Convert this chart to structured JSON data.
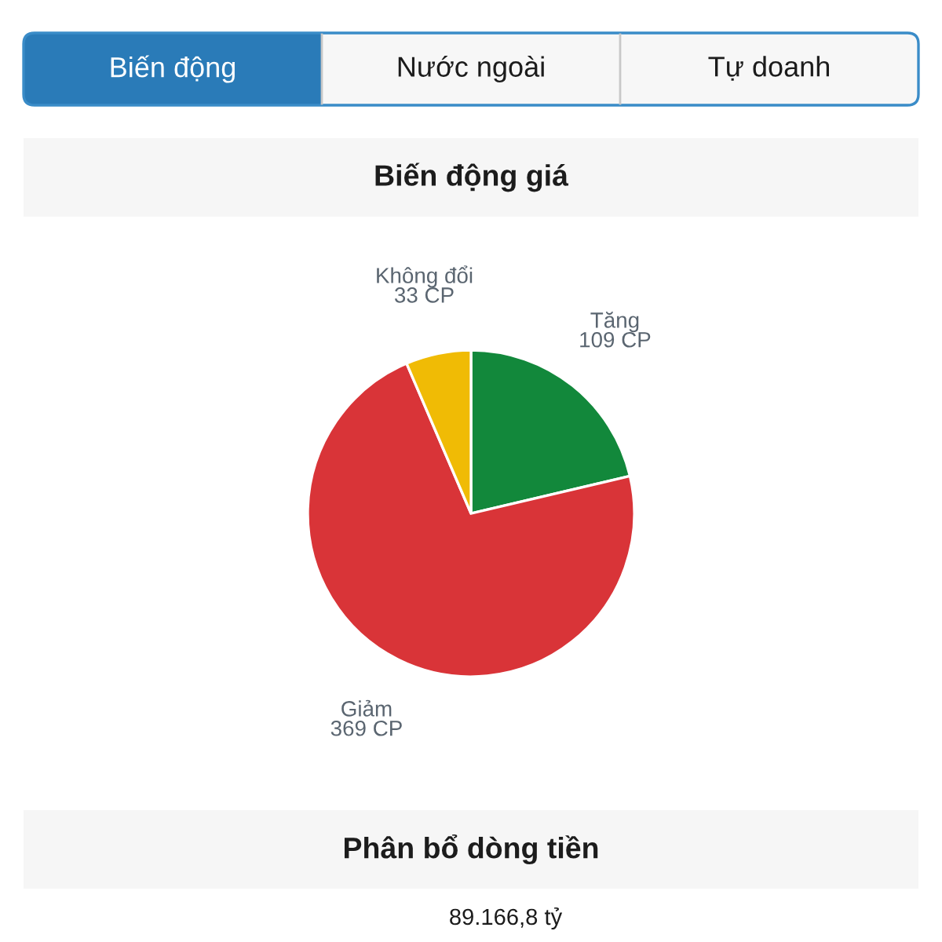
{
  "chart_data": [
    {
      "type": "other",
      "annotations": [
        "Biến động",
        "Nước ngoài",
        "Tự doanh"
      ]
    },
    {
      "type": "pie",
      "title": "Biến động giá",
      "categories": [
        "Tăng",
        "Giảm",
        "Không đổi"
      ],
      "values": [
        109,
        369,
        33
      ],
      "colors": [
        "#12883b",
        "#d93438",
        "#f0bb05"
      ],
      "value_labels": [
        "109 CP",
        "369 CP",
        "33 CP"
      ]
    },
    {
      "type": "other",
      "title": "Phân bổ dòng tiền",
      "annotations": [
        "89.166,8 tỷ"
      ]
    }
  ]
}
